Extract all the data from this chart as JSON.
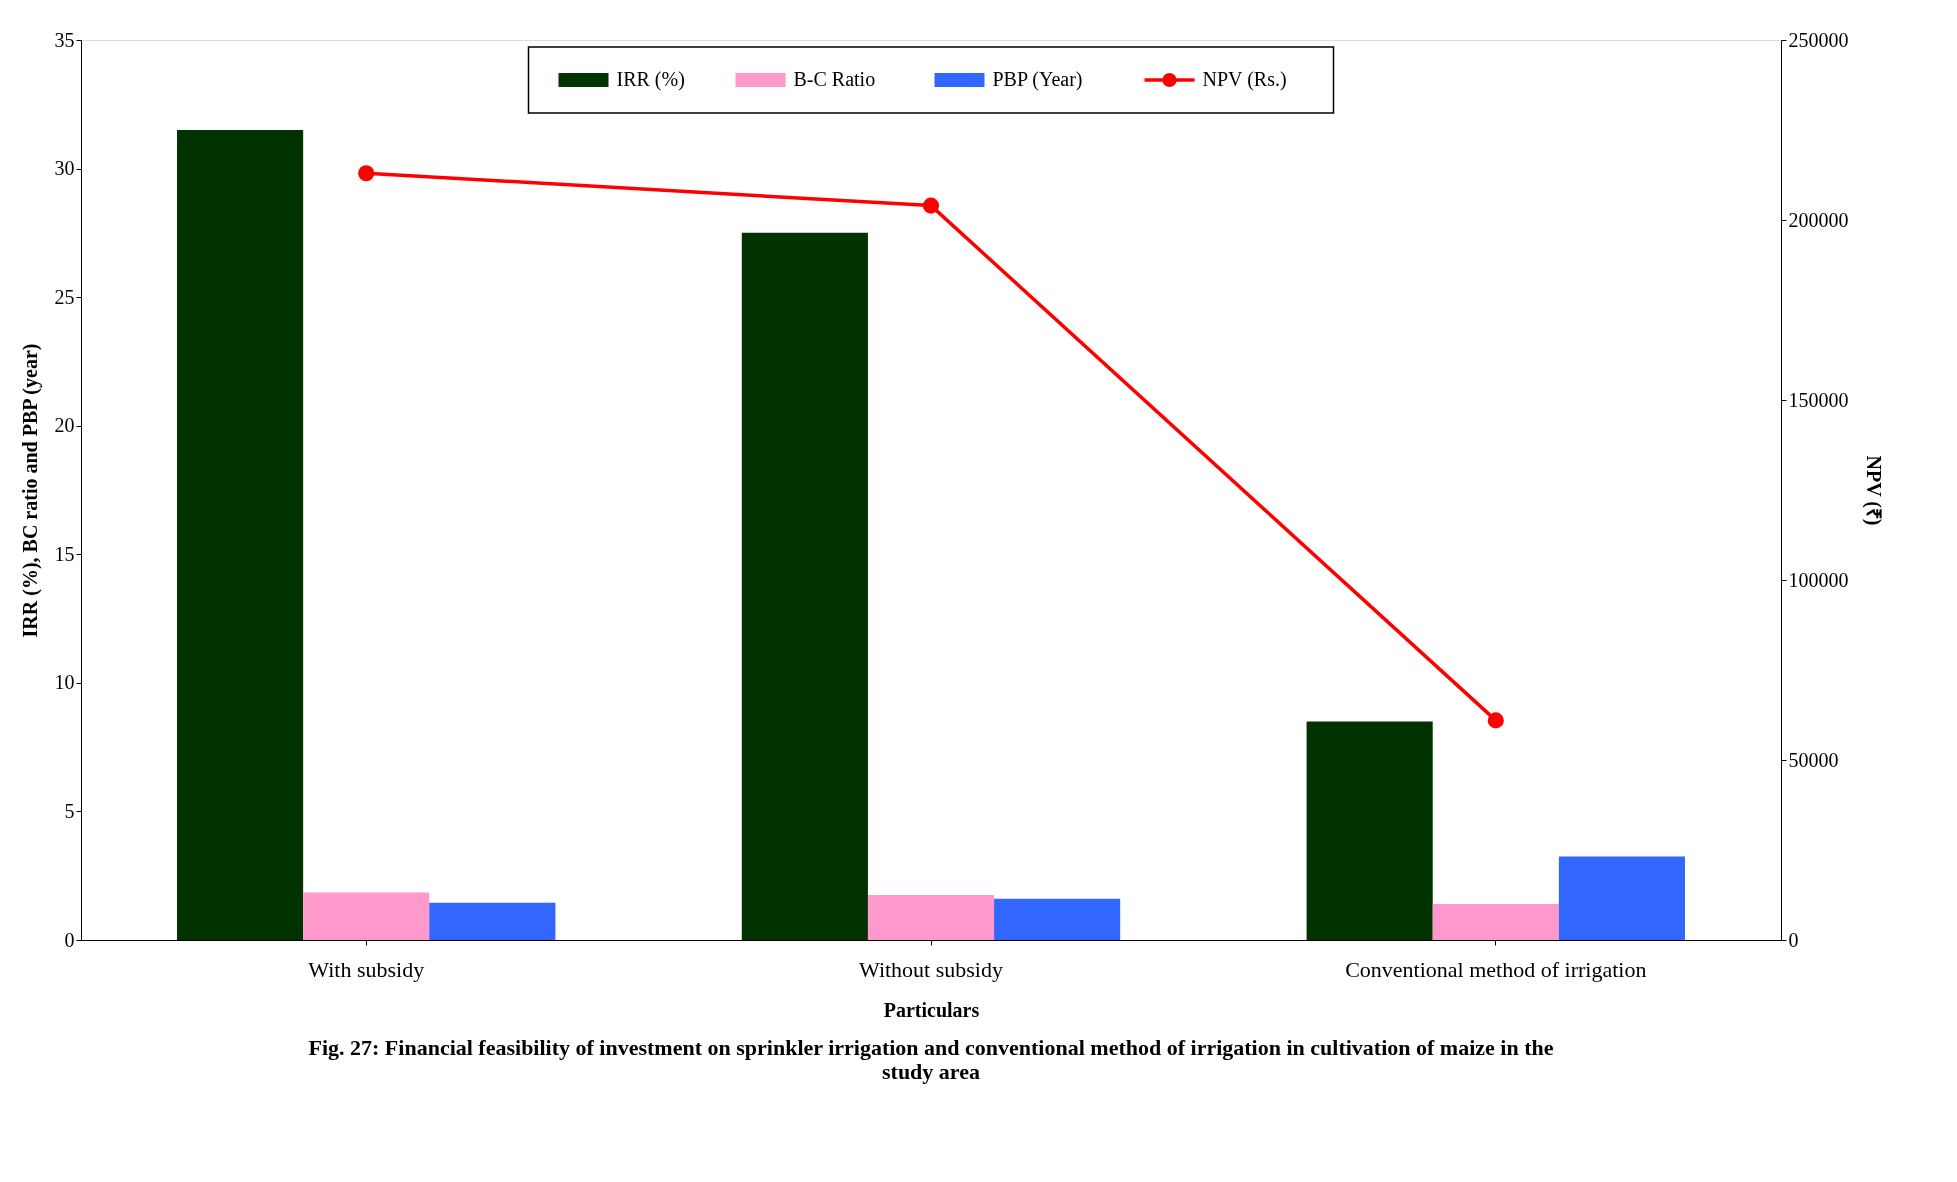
{
  "chart_data": {
    "type": "bar",
    "title": "Fig.  27: Financial feasibility of investment on sprinkler irrigation and conventional method of irrigation in cultivation of maize in the study area",
    "xlabel": "Particulars",
    "ylabel": "IRR (%), BC ratio and PBP (year)",
    "y2label": "NPV (₹)",
    "categories": [
      "With subsidy",
      "Without subsidy",
      "Conventional method of irrigation"
    ],
    "series": [
      {
        "name": "IRR (%)",
        "color": "#003300",
        "values": [
          31.5,
          27.5,
          8.5
        ]
      },
      {
        "name": "B-C Ratio",
        "color": "#ff99cc",
        "values": [
          1.85,
          1.75,
          1.4
        ]
      },
      {
        "name": "PBP (Year)",
        "color": "#3366ff",
        "values": [
          1.45,
          1.6,
          3.25
        ]
      },
      {
        "name": "NPV (Rs.)",
        "type": "line",
        "axis": "y2",
        "color": "#ff0000",
        "marker": "circle",
        "values": [
          213000,
          204000,
          61000
        ]
      }
    ],
    "ylim": [
      0,
      35
    ],
    "yticks": [
      0,
      5,
      10,
      15,
      20,
      25,
      30,
      35
    ],
    "y2lim": [
      0,
      250000
    ],
    "y2ticks": [
      0,
      50000,
      100000,
      150000,
      200000,
      250000
    ],
    "grid": false,
    "legend": "top"
  }
}
